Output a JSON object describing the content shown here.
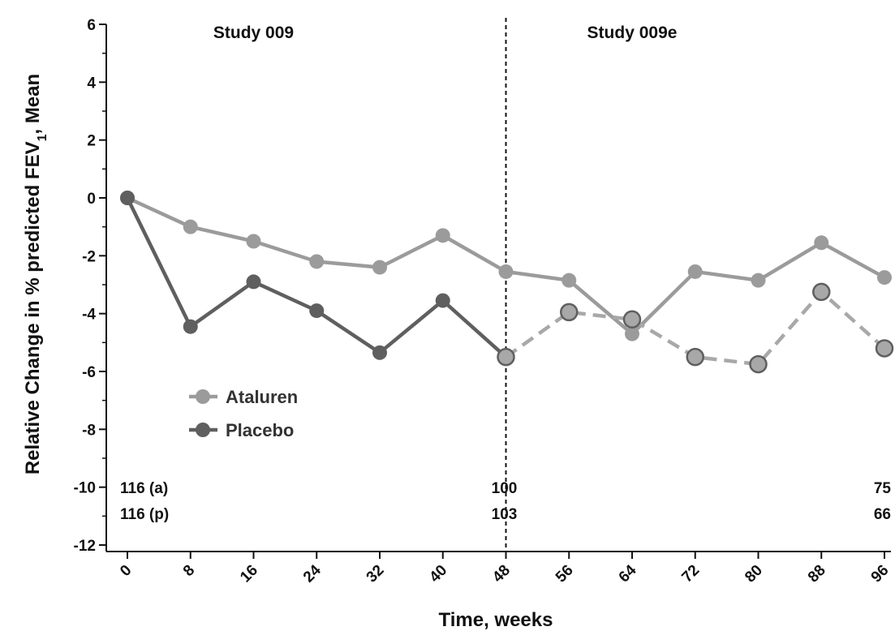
{
  "chart_data": {
    "type": "line",
    "xlabel": "Time, weeks",
    "ylabel_main": "Relative Change in % predicted FEV",
    "ylabel_sub": "1",
    "ylabel_tail": ", Mean",
    "xlim": [
      0,
      96
    ],
    "ylim": [
      -12,
      6
    ],
    "x_ticks": [
      0,
      8,
      16,
      24,
      32,
      40,
      48,
      56,
      64,
      72,
      80,
      88,
      96
    ],
    "y_ticks": [
      6,
      4,
      2,
      0,
      -2,
      -4,
      -6,
      -8,
      -10,
      -12
    ],
    "grid": false,
    "legend_position": "lower-left",
    "divider_x": 48,
    "study_labels": [
      {
        "text": "Study 009",
        "x": 16
      },
      {
        "text": "Study 009e",
        "x": 64
      }
    ],
    "series": [
      {
        "name": "Ataluren",
        "color": "#9b9b9b",
        "x": [
          0,
          8,
          16,
          24,
          32,
          40,
          48,
          56,
          64,
          72,
          80,
          88,
          96
        ],
        "values": [
          0,
          -1.0,
          -1.5,
          -2.2,
          -2.4,
          -1.3,
          -2.55,
          -2.85,
          -4.7,
          -2.55,
          -2.85,
          -1.55,
          -2.75
        ],
        "extension_style": "solid"
      },
      {
        "name": "Placebo",
        "color": "#5f5f5f",
        "extension_color": "#a8a8a8",
        "x": [
          0,
          8,
          16,
          24,
          32,
          40,
          48,
          56,
          64,
          72,
          80,
          88,
          96
        ],
        "values": [
          0,
          -4.45,
          -2.9,
          -3.9,
          -5.35,
          -3.55,
          -5.5,
          -3.95,
          -4.2,
          -5.5,
          -5.75,
          -3.25,
          -5.2
        ],
        "extension_style": "dashed"
      }
    ],
    "n_labels": [
      {
        "text": "116 (a)",
        "x": 0,
        "row": 1
      },
      {
        "text": "116 (p)",
        "x": 0,
        "row": 2
      },
      {
        "text": "100",
        "x": 48,
        "row": 1
      },
      {
        "text": "103",
        "x": 48,
        "row": 2
      },
      {
        "text": "75",
        "x": 96,
        "row": 1
      },
      {
        "text": "66",
        "x": 96,
        "row": 2
      }
    ]
  }
}
